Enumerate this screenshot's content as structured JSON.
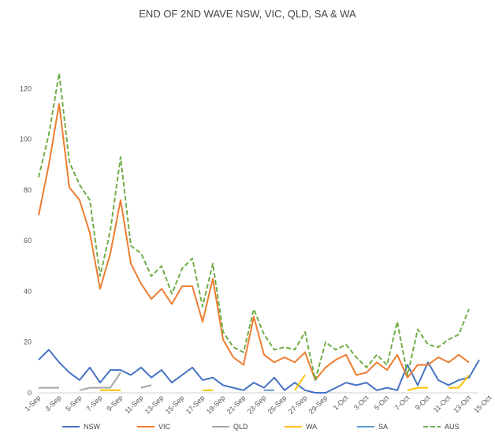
{
  "chart_data": {
    "type": "line",
    "title": "END OF 2ND WAVE NSW, VIC, QLD, SA & WA",
    "xlabel": "",
    "ylabel": "",
    "ylim": [
      0,
      140
    ],
    "yticks": [
      0,
      20,
      40,
      60,
      80,
      100,
      120
    ],
    "grid": false,
    "legend_position": "bottom",
    "x": [
      "1-Sep",
      "2-Sep",
      "3-Sep",
      "4-Sep",
      "5-Sep",
      "6-Sep",
      "7-Sep",
      "8-Sep",
      "9-Sep",
      "10-Sep",
      "11-Sep",
      "12-Sep",
      "13-Sep",
      "14-Sep",
      "15-Sep",
      "16-Sep",
      "17-Sep",
      "18-Sep",
      "19-Sep",
      "20-Sep",
      "21-Sep",
      "22-Sep",
      "23-Sep",
      "24-Sep",
      "25-Sep",
      "26-Sep",
      "27-Sep",
      "28-Sep",
      "29-Sep",
      "30-Sep",
      "1-Oct",
      "2-Oct",
      "3-Oct",
      "4-Oct",
      "5-Oct",
      "6-Oct",
      "7-Oct",
      "8-Oct",
      "9-Oct",
      "10-Oct",
      "11-Oct",
      "12-Oct",
      "13-Oct",
      "14-Oct",
      "15-Oct"
    ],
    "x_tick_labels": [
      "1-Sep",
      "3-Sep",
      "5-Sep",
      "7-Sep",
      "9-Sep",
      "11-Sep",
      "13-Sep",
      "15-Sep",
      "17-Sep",
      "19-Sep",
      "21-Sep",
      "23-Sep",
      "25-Sep",
      "27-Sep",
      "29-Sep",
      "1-Oct",
      "3-Oct",
      "5-Oct",
      "7-Oct",
      "9-Oct",
      "11-Oct",
      "13-Oct",
      "15-Oct"
    ],
    "series": [
      {
        "name": "NSW",
        "color": "#4472C4",
        "dash": "solid",
        "values": [
          13,
          17,
          12,
          8,
          5,
          10,
          4,
          9,
          9,
          7,
          10,
          6,
          9,
          4,
          7,
          10,
          5,
          6,
          3,
          2,
          1,
          4,
          2,
          6,
          1,
          4,
          1,
          0,
          0,
          2,
          4,
          3,
          4,
          1,
          2,
          1,
          11,
          3,
          12,
          5,
          3,
          5,
          6,
          13,
          null
        ]
      },
      {
        "name": "VIC",
        "color": "#ED7D31",
        "dash": "solid",
        "values": [
          70,
          90,
          114,
          81,
          76,
          63,
          41,
          55,
          76,
          51,
          43,
          37,
          41,
          35,
          42,
          42,
          28,
          45,
          21,
          14,
          11,
          30,
          15,
          12,
          14,
          12,
          16,
          5,
          10,
          13,
          15,
          7,
          8,
          12,
          9,
          15,
          6,
          11,
          11,
          14,
          12,
          15,
          12,
          null,
          null
        ]
      },
      {
        "name": "QLD",
        "color": "#A5A5A5",
        "dash": "solid",
        "values": [
          2,
          2,
          2,
          null,
          1,
          2,
          2,
          2,
          8,
          null,
          2,
          3,
          null,
          null,
          null,
          null,
          null,
          null,
          null,
          null,
          null,
          null,
          null,
          null,
          null,
          null,
          null,
          null,
          null,
          null,
          null,
          null,
          null,
          null,
          null,
          null,
          null,
          null,
          null,
          null,
          null,
          null,
          null,
          null,
          null
        ]
      },
      {
        "name": "WA",
        "color": "#FFC000",
        "dash": "solid",
        "values": [
          null,
          null,
          null,
          null,
          null,
          null,
          1,
          1,
          1,
          null,
          null,
          null,
          null,
          null,
          null,
          null,
          1,
          1,
          null,
          null,
          null,
          null,
          null,
          null,
          null,
          1,
          7,
          null,
          null,
          null,
          null,
          null,
          null,
          null,
          null,
          null,
          1,
          2,
          2,
          null,
          2,
          2,
          7,
          null,
          null
        ]
      },
      {
        "name": "SA",
        "color": "#5B9BD5",
        "dash": "solid",
        "values": [
          null,
          null,
          null,
          null,
          null,
          null,
          null,
          null,
          null,
          null,
          null,
          null,
          null,
          null,
          null,
          null,
          null,
          null,
          null,
          null,
          null,
          null,
          1,
          1,
          null,
          null,
          null,
          null,
          null,
          null,
          null,
          null,
          null,
          null,
          null,
          null,
          null,
          null,
          null,
          null,
          null,
          null,
          null,
          null,
          null
        ]
      },
      {
        "name": "AUS",
        "color": "#70AD47",
        "dash": "dashed",
        "values": [
          85,
          102,
          126,
          91,
          82,
          76,
          46,
          64,
          93,
          58,
          55,
          46,
          50,
          39,
          49,
          53,
          34,
          51,
          24,
          18,
          16,
          33,
          23,
          17,
          18,
          17,
          24,
          5,
          20,
          17,
          19,
          14,
          10,
          15,
          11,
          28,
          7,
          25,
          19,
          18,
          21,
          23,
          33,
          null,
          null
        ]
      }
    ]
  }
}
